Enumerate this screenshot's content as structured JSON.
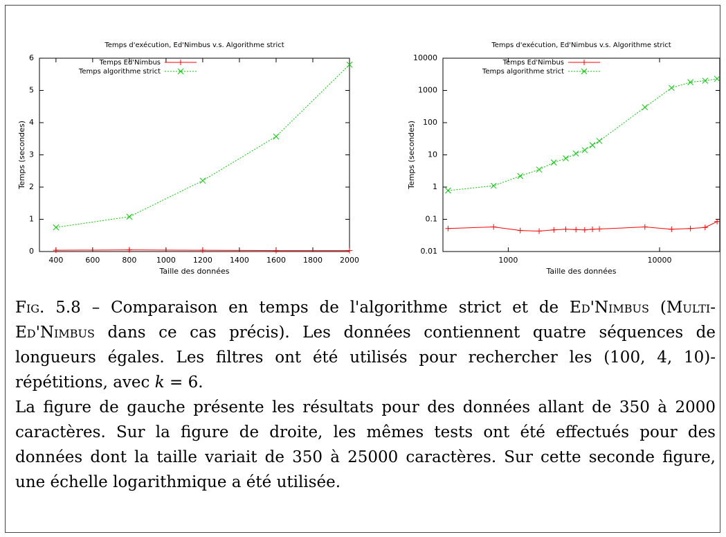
{
  "chart_data": [
    {
      "type": "line",
      "title": "Temps d'exécution, Ed'Nimbus v.s. Algorithme strict",
      "xlabel": "Taille des données",
      "ylabel": "Temps (secondes)",
      "x": [
        400,
        800,
        1200,
        1600,
        2000
      ],
      "series": [
        {
          "name": "Temps Ed'Nimbus",
          "color": "#ff0000",
          "marker": "+",
          "values": [
            0.04,
            0.05,
            0.04,
            0.03,
            0.03
          ]
        },
        {
          "name": "Temps algorithme strict",
          "color": "#00cc00",
          "marker": "x",
          "values": [
            0.75,
            1.08,
            2.2,
            3.57,
            5.8
          ]
        }
      ],
      "xlim": [
        310,
        2000
      ],
      "ylim": [
        0,
        6
      ],
      "xticks": [
        400,
        600,
        800,
        1000,
        1200,
        1400,
        1600,
        1800,
        2000
      ],
      "yticks": [
        0,
        1,
        2,
        3,
        4,
        5,
        6
      ],
      "log_x": false,
      "log_y": false,
      "legend": "top-left",
      "grid": false
    },
    {
      "type": "line",
      "title": "Temps d'exécution, Ed'Nimbus v.s. Algorithme strict",
      "xlabel": "Taille des données",
      "ylabel": "Temps (secondes)",
      "x": [
        400,
        800,
        1200,
        1600,
        2000,
        2400,
        2800,
        3200,
        3600,
        4000,
        8000,
        12000,
        16000,
        20000,
        24000
      ],
      "series": [
        {
          "name": "Temps Ed'Nimbus",
          "color": "#ff0000",
          "marker": "+",
          "values": [
            0.052,
            0.058,
            0.045,
            0.043,
            0.047,
            0.049,
            0.048,
            0.047,
            0.049,
            0.05,
            0.058,
            0.049,
            0.052,
            0.056,
            0.085
          ]
        },
        {
          "name": "Temps algorithme strict",
          "color": "#00cc00",
          "marker": "x",
          "values": [
            0.78,
            1.1,
            2.2,
            3.5,
            5.8,
            7.8,
            11,
            14,
            20,
            27,
            300,
            1200,
            1800,
            2000,
            2300
          ]
        }
      ],
      "xlim": [
        370,
        25000
      ],
      "ylim": [
        0.01,
        10000
      ],
      "xticks": [
        1000,
        10000
      ],
      "yticks": [
        0.01,
        0.1,
        1,
        10,
        100,
        1000,
        10000
      ],
      "log_x": true,
      "log_y": true,
      "legend": "top-left",
      "grid": false
    }
  ],
  "caption": {
    "p1": [
      "Fig. 5.8",
      " – Comparaison en temps de l'algorithme strict et de ",
      "Ed'Nimbus",
      " (",
      "Multi-Ed'Nimbus",
      " dans ce cas précis). Les données contiennent quatre séquences de longueurs égales. Les filtres ont été utilisés pour rechercher les (100, 4, 10)-répétitions, avec ",
      "k",
      " = 6."
    ],
    "p2": "La figure de gauche présente les résultats pour des données allant de 350 à 2000 caractères. Sur la figure de droite, les mêmes tests ont été effectués pour des données dont la taille variait de 350 à 25000 caractères. Sur cette seconde figure, une échelle logarithmique a été utilisée."
  }
}
